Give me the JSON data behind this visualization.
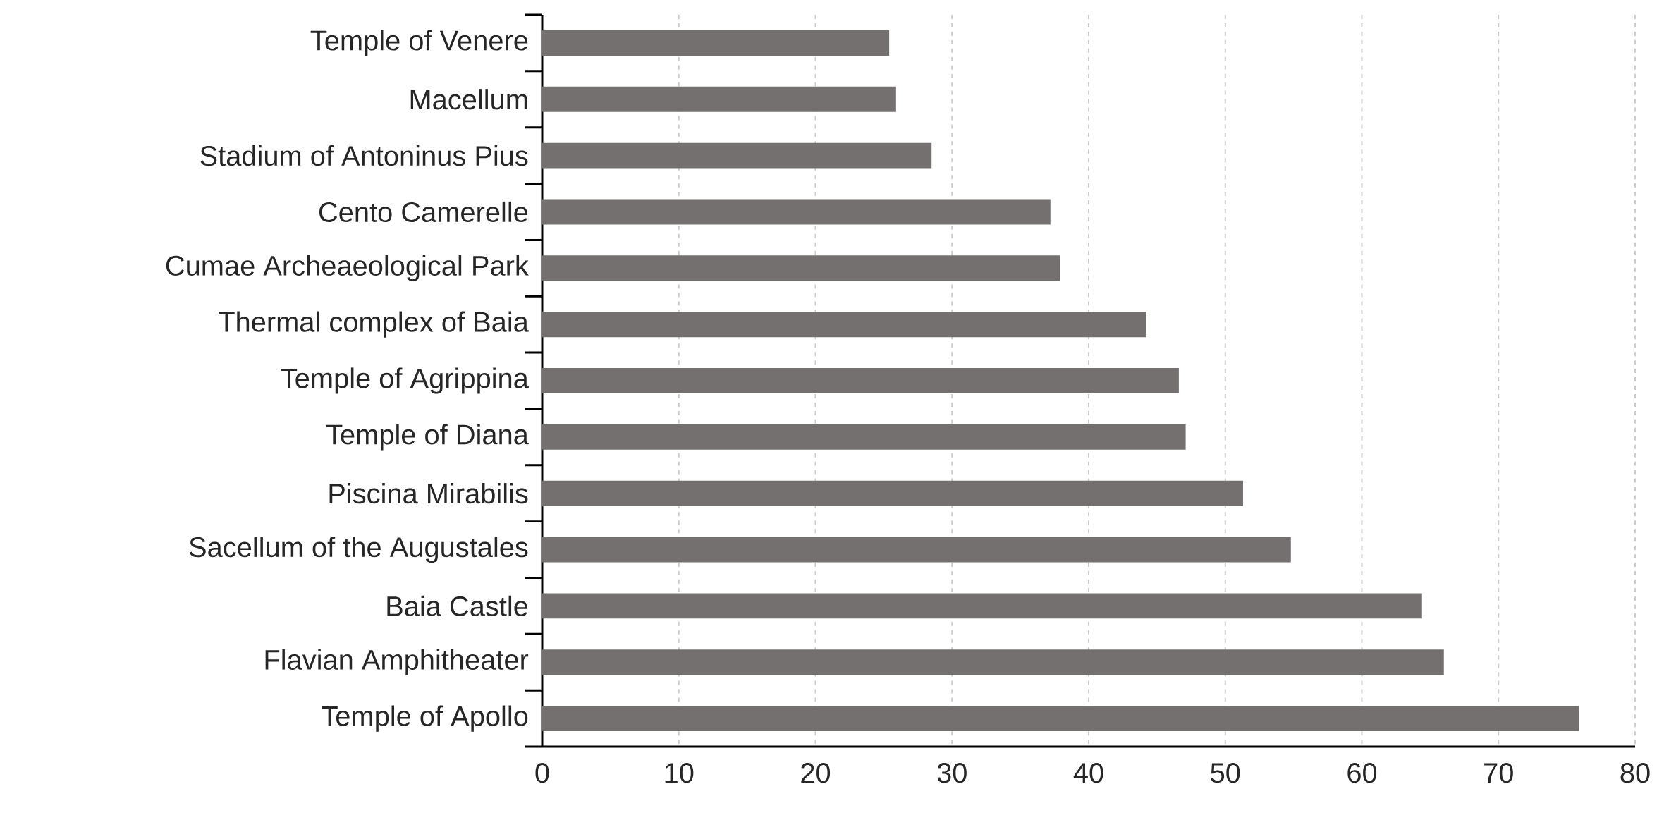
{
  "chart_data": {
    "type": "bar",
    "orientation": "horizontal",
    "categories": [
      "Temple of Venere",
      "Macellum",
      "Stadium of Antoninus Pius",
      "Cento Camerelle",
      "Cumae Archeaeological Park",
      "Thermal complex of Baia",
      "Temple of Agrippina",
      "Temple of Diana",
      "Piscina Mirabilis",
      "Sacellum of the Augustales",
      "Baia Castle",
      "Flavian Amphitheater",
      "Temple of Apollo"
    ],
    "values": [
      25.4,
      25.9,
      28.5,
      37.2,
      37.9,
      44.2,
      46.6,
      47.1,
      51.3,
      54.8,
      64.4,
      66.0,
      75.9
    ],
    "color": "#747070",
    "xlim": [
      0,
      80
    ],
    "xticks": [
      0,
      10,
      20,
      30,
      40,
      50,
      60,
      70,
      80
    ],
    "grid": "x"
  }
}
